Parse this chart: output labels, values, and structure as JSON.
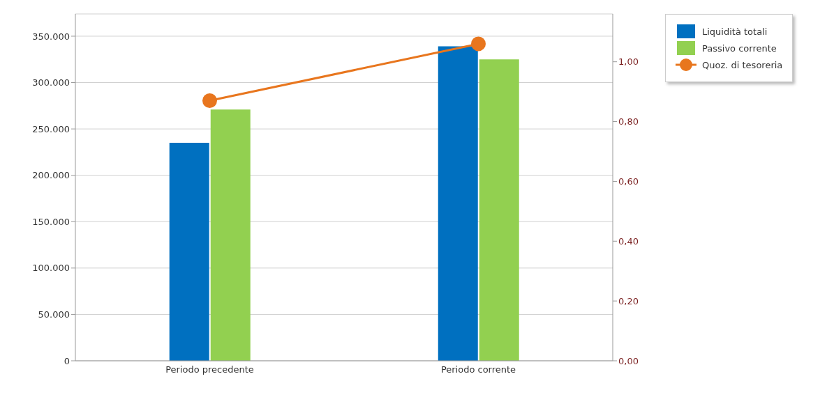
{
  "chart_data": {
    "type": "bar",
    "categories": [
      "Periodo precedente",
      "Periodo corrente"
    ],
    "series": [
      {
        "name": "Liquidità totali",
        "color": "#0070c0",
        "values": [
          235000,
          339000
        ]
      },
      {
        "name": "Passivo corrente",
        "color": "#92d050",
        "values": [
          271000,
          325000
        ]
      },
      {
        "name": "Quoz. di tesoreria",
        "color": "#e8761e",
        "values": [
          0.87,
          1.06
        ],
        "type": "line",
        "axis": "y2"
      }
    ],
    "ylim": [
      0,
      374000
    ],
    "yticks": [
      {
        "value": 0,
        "label": "0"
      },
      {
        "value": 50000,
        "label": "50.000"
      },
      {
        "value": 100000,
        "label": "100.000"
      },
      {
        "value": 150000,
        "label": "150.000"
      },
      {
        "value": 200000,
        "label": "200.000"
      },
      {
        "value": 250000,
        "label": "250.000"
      },
      {
        "value": 300000,
        "label": "300.000"
      },
      {
        "value": 350000,
        "label": "350.000"
      }
    ],
    "y2lim": [
      0,
      1.16
    ],
    "y2ticks": [
      {
        "value": 0,
        "label": "0,00"
      },
      {
        "value": 0.2,
        "label": "0,20"
      },
      {
        "value": 0.4,
        "label": "0,40"
      },
      {
        "value": 0.6,
        "label": "0,60"
      },
      {
        "value": 0.8,
        "label": "0,80"
      },
      {
        "value": 1,
        "label": "1,00"
      }
    ],
    "grid": "y",
    "legend": "top right",
    "marker": "circle"
  }
}
